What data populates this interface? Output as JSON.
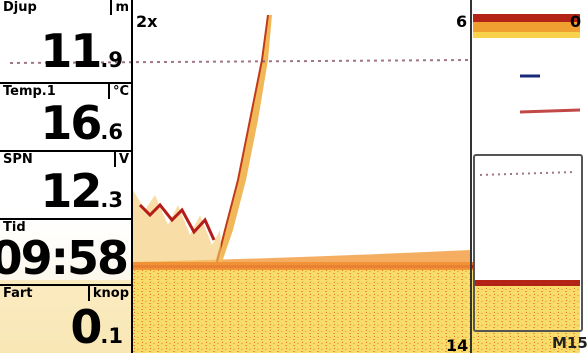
{
  "display": {
    "zoom_label": "2x",
    "range_top": "6",
    "range_bottom": "14",
    "right_scale": "M15",
    "right_top": "0"
  },
  "data_boxes": [
    {
      "label": "Djup",
      "unit": "m",
      "value_big": "11",
      "value_small": ".9"
    },
    {
      "label": "Temp.1",
      "unit": "°C",
      "value_big": "16",
      "value_small": ".6"
    },
    {
      "label": "SPN",
      "unit": "V",
      "value_big": "12",
      "value_small": ".3"
    },
    {
      "label": "Tid",
      "unit": "",
      "value_big": "09:58",
      "value_small": ""
    },
    {
      "label": "Fart",
      "unit": "knop",
      "value_big": "0",
      "value_small": ".1"
    }
  ],
  "colors": {
    "bottom_yellow": "#f7d24a",
    "bottom_orange": "#e8742a",
    "bottom_red": "#b32416",
    "target_red": "#b41b1b"
  }
}
